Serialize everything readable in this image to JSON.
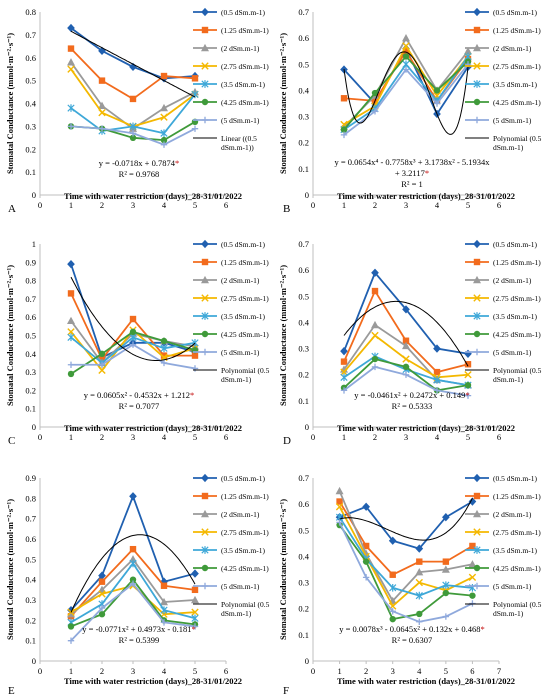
{
  "figure": {
    "x_axis_title": "Time with water restriction (days)_28-31/01/2022",
    "y_axis_title": "Stomatal Conductance (mmol·m⁻²·s⁻¹)"
  },
  "series_styles": [
    {
      "name": "(0.5 dSm.m-1)",
      "color": "#2060b0",
      "marker": "diamond"
    },
    {
      "name": "(1.25 dSm.m-1)",
      "color": "#f26b1d",
      "marker": "square"
    },
    {
      "name": "(2 dSm.m-1)",
      "color": "#9a9a9a",
      "marker": "triangle"
    },
    {
      "name": "(2.75 dSm.m-1)",
      "color": "#f4b800",
      "marker": "x"
    },
    {
      "name": "(3.5 dSm.m-1)",
      "color": "#3ea8d8",
      "marker": "star"
    },
    {
      "name": "(4.25 dSm.m-1)",
      "color": "#3f9a3a",
      "marker": "circle"
    },
    {
      "name": "(5 dSm.m-1)",
      "color": "#8fa9dc",
      "marker": "plus"
    }
  ],
  "chart_data": [
    {
      "type": "line",
      "panel": "A",
      "xlim": [
        0,
        6
      ],
      "ylim": [
        0,
        0.8
      ],
      "ystep": 0.1,
      "xlabel": "Time with water restriction (days)_28-31/01/2022",
      "ylabel": "Stomatal Conductance (mmol·m⁻²·s⁻¹)",
      "x": [
        1,
        2,
        3,
        4,
        5
      ],
      "series": [
        {
          "name": "(0.5 dSm.m-1)",
          "values": [
            0.73,
            0.63,
            0.56,
            0.51,
            0.52
          ]
        },
        {
          "name": "(1.25 dSm.m-1)",
          "values": [
            0.64,
            0.5,
            0.42,
            0.52,
            0.51
          ]
        },
        {
          "name": "(2 dSm.m-1)",
          "values": [
            0.58,
            0.39,
            0.29,
            0.38,
            0.45
          ]
        },
        {
          "name": "(2.75 dSm.m-1)",
          "values": [
            0.55,
            0.36,
            0.3,
            0.34,
            0.44
          ]
        },
        {
          "name": "(3.5 dSm.m-1)",
          "values": [
            0.38,
            0.28,
            0.3,
            0.27,
            0.44
          ]
        },
        {
          "name": "(4.25 dSm.m-1)",
          "values": [
            0.3,
            0.29,
            0.25,
            0.24,
            0.32
          ]
        },
        {
          "name": "(5 dSm.m-1)",
          "values": [
            0.3,
            0.29,
            0.27,
            0.22,
            0.29
          ]
        }
      ],
      "trend": {
        "name": "Linear ((0.5 dSm.m-1))",
        "kind": "linear",
        "coef": [
          0.7874,
          -0.0718
        ]
      },
      "equation": "y = -0.0718x + 0.7874",
      "equation_star": "*",
      "r2": "R² = 0.9768"
    },
    {
      "type": "line",
      "panel": "B",
      "xlim": [
        0,
        6
      ],
      "ylim": [
        0,
        0.7
      ],
      "ystep": 0.1,
      "xlabel": "Time with water restriction (days)_28-31/01/2022",
      "ylabel": "Stomatal Conductance (mmol·m⁻²·s⁻¹)",
      "x": [
        1,
        2,
        3,
        4,
        5
      ],
      "series": [
        {
          "name": "(0.5 dSm.m-1)",
          "values": [
            0.48,
            0.35,
            0.56,
            0.31,
            0.49
          ]
        },
        {
          "name": "(1.25 dSm.m-1)",
          "values": [
            0.37,
            0.36,
            0.55,
            0.36,
            0.52
          ]
        },
        {
          "name": "(2 dSm.m-1)",
          "values": [
            0.26,
            0.38,
            0.6,
            0.4,
            0.55
          ]
        },
        {
          "name": "(2.75 dSm.m-1)",
          "values": [
            0.27,
            0.34,
            0.57,
            0.38,
            0.53
          ]
        },
        {
          "name": "(3.5 dSm.m-1)",
          "values": [
            0.25,
            0.33,
            0.5,
            0.36,
            0.53
          ]
        },
        {
          "name": "(4.25 dSm.m-1)",
          "values": [
            0.25,
            0.39,
            0.53,
            0.4,
            0.51
          ]
        },
        {
          "name": "(5 dSm.m-1)",
          "values": [
            0.23,
            0.32,
            0.48,
            0.35,
            0.5
          ]
        }
      ],
      "trend": {
        "name": "Polynomial (0.5 dSm.m-1)",
        "kind": "poly",
        "coef": [
          3.2117,
          -5.1934,
          3.1738,
          -0.7758,
          0.0654
        ]
      },
      "equation": "y = 0.0654x⁴ - 0.7758x³ + 3.1738x² - 5.1934x",
      "equation2": "+ 3.2117",
      "equation_star": "*",
      "r2": "R² = 1"
    },
    {
      "type": "line",
      "panel": "C",
      "xlim": [
        0,
        6
      ],
      "ylim": [
        0,
        1
      ],
      "ystep": 0.1,
      "xlabel": "Time with water restriction (days)_28-31/01/2022",
      "ylabel": "Stomatal Conductance (mmol·m⁻²·s⁻¹)",
      "x": [
        1,
        2,
        3,
        4,
        5
      ],
      "series": [
        {
          "name": "(0.5 dSm.m-1)",
          "values": [
            0.89,
            0.38,
            0.46,
            0.46,
            0.41
          ]
        },
        {
          "name": "(1.25 dSm.m-1)",
          "values": [
            0.73,
            0.37,
            0.59,
            0.39,
            0.39
          ]
        },
        {
          "name": "(2 dSm.m-1)",
          "values": [
            0.58,
            0.35,
            0.51,
            0.47,
            0.44
          ]
        },
        {
          "name": "(2.75 dSm.m-1)",
          "values": [
            0.52,
            0.31,
            0.53,
            0.38,
            0.43
          ]
        },
        {
          "name": "(3.5 dSm.m-1)",
          "values": [
            0.49,
            0.35,
            0.49,
            0.43,
            0.46
          ]
        },
        {
          "name": "(4.25 dSm.m-1)",
          "values": [
            0.29,
            0.4,
            0.52,
            0.47,
            0.42
          ]
        },
        {
          "name": "(5 dSm.m-1)",
          "values": [
            0.34,
            0.34,
            0.45,
            0.35,
            0.32
          ]
        }
      ],
      "trend": {
        "name": "Polynomial (0.5 dSm.m-1)",
        "kind": "poly",
        "coef": [
          1.212,
          -0.4532,
          0.0605
        ]
      },
      "equation": "y = 0.0605x² - 0.4532x + 1.212",
      "equation_star": "*",
      "r2": "R² = 0.7077"
    },
    {
      "type": "line",
      "panel": "D",
      "xlim": [
        0,
        6
      ],
      "ylim": [
        0,
        0.7
      ],
      "ystep": 0.1,
      "xlabel": "Time with water restriction (days)_28-31/01/2022",
      "ylabel": "Stomatal Conductance (mmol·m⁻²·s⁻¹)",
      "x": [
        1,
        2,
        3,
        4,
        5
      ],
      "series": [
        {
          "name": "(0.5 dSm.m-1)",
          "values": [
            0.29,
            0.59,
            0.45,
            0.3,
            0.28
          ]
        },
        {
          "name": "(1.25 dSm.m-1)",
          "values": [
            0.25,
            0.52,
            0.33,
            0.21,
            0.24
          ]
        },
        {
          "name": "(2 dSm.m-1)",
          "values": [
            0.22,
            0.39,
            0.31,
            0.18,
            0.16
          ]
        },
        {
          "name": "(2.75 dSm.m-1)",
          "values": [
            0.21,
            0.35,
            0.26,
            0.19,
            0.2
          ]
        },
        {
          "name": "(3.5 dSm.m-1)",
          "values": [
            0.19,
            0.27,
            0.22,
            0.18,
            0.16
          ]
        },
        {
          "name": "(4.25 dSm.m-1)",
          "values": [
            0.15,
            0.26,
            0.23,
            0.14,
            0.16
          ]
        },
        {
          "name": "(5 dSm.m-1)",
          "values": [
            0.14,
            0.23,
            0.2,
            0.14,
            0.12
          ]
        }
      ],
      "trend": {
        "name": "Polynomial (0.5 dSm.m-1)",
        "kind": "poly",
        "coef": [
          0.149,
          0.2472,
          -0.0461
        ]
      },
      "equation": "y = -0.0461x² + 0.2472x + 0.149",
      "equation_star": "*",
      "r2": "R² = 0.5333"
    },
    {
      "type": "line",
      "panel": "E",
      "xlim": [
        0,
        6
      ],
      "ylim": [
        0,
        0.9
      ],
      "ystep": 0.1,
      "xlabel": "Time with water restriction (days)_28-31/01/2022",
      "ylabel": "Stomatal Conductance (mmol·m⁻²·s⁻¹)",
      "x": [
        1,
        2,
        3,
        4,
        5
      ],
      "series": [
        {
          "name": "(0.5 dSm.m-1)",
          "values": [
            0.25,
            0.42,
            0.81,
            0.39,
            0.43
          ]
        },
        {
          "name": "(1.25 dSm.m-1)",
          "values": [
            0.22,
            0.39,
            0.55,
            0.37,
            0.35
          ]
        },
        {
          "name": "(2 dSm.m-1)",
          "values": [
            0.23,
            0.35,
            0.5,
            0.29,
            0.3
          ]
        },
        {
          "name": "(2.75 dSm.m-1)",
          "values": [
            0.24,
            0.33,
            0.37,
            0.23,
            0.24
          ]
        },
        {
          "name": "(3.5 dSm.m-1)",
          "values": [
            0.19,
            0.28,
            0.48,
            0.25,
            0.21
          ]
        },
        {
          "name": "(4.25 dSm.m-1)",
          "values": [
            0.17,
            0.23,
            0.4,
            0.2,
            0.18
          ]
        },
        {
          "name": "(5 dSm.m-1)",
          "values": [
            0.1,
            0.26,
            0.38,
            0.19,
            0.17
          ]
        }
      ],
      "trend": {
        "name": "Polynomial (0.5 dSm.m-1)",
        "kind": "poly",
        "coef": [
          -0.181,
          0.4973,
          -0.0771
        ]
      },
      "equation": "y = -0.0771x² + 0.4973x - 0.181",
      "equation_star": "*",
      "r2": "R² = 0.5399"
    },
    {
      "type": "line",
      "panel": "F",
      "xlim": [
        0,
        7
      ],
      "ylim": [
        0,
        0.7
      ],
      "ystep": 0.1,
      "xlabel": "Time with water restriction (days)_28-31/01/2022",
      "ylabel": "Stomatal Conductance (mmol·m⁻²·s⁻¹)",
      "x": [
        1,
        2,
        3,
        4,
        5,
        6
      ],
      "series": [
        {
          "name": "(0.5 dSm.m-1)",
          "values": [
            0.55,
            0.59,
            0.46,
            0.43,
            0.55,
            0.61
          ]
        },
        {
          "name": "(1.25 dSm.m-1)",
          "values": [
            0.61,
            0.44,
            0.33,
            0.38,
            0.38,
            0.44
          ]
        },
        {
          "name": "(2 dSm.m-1)",
          "values": [
            0.65,
            0.41,
            0.23,
            0.34,
            0.35,
            0.37
          ]
        },
        {
          "name": "(2.75 dSm.m-1)",
          "values": [
            0.59,
            0.4,
            0.21,
            0.3,
            0.27,
            0.32
          ]
        },
        {
          "name": "(3.5 dSm.m-1)",
          "values": [
            0.55,
            0.39,
            0.28,
            0.25,
            0.29,
            0.28
          ]
        },
        {
          "name": "(4.25 dSm.m-1)",
          "values": [
            0.52,
            0.38,
            0.16,
            0.18,
            0.26,
            0.25
          ]
        },
        {
          "name": "(5 dSm.m-1)",
          "values": [
            0.53,
            0.32,
            0.19,
            0.15,
            0.17,
            0.22
          ]
        }
      ],
      "trend": {
        "name": "Polynomial (0.5 dSm.m-1)",
        "kind": "poly",
        "coef": [
          0.468,
          0.132,
          -0.0645,
          0.0078
        ]
      },
      "equation": "y = 0.0078x³ - 0.0645x² + 0.132x + 0.468",
      "equation_star": "*",
      "r2": "R² = 0.6307"
    }
  ]
}
